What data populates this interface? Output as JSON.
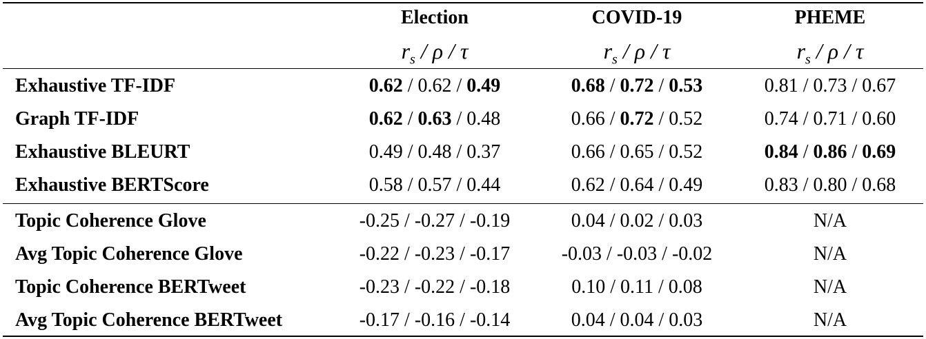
{
  "header": {
    "columns": [
      "Election",
      "COVID-19",
      "PHEME"
    ],
    "metric_label": "r_s / ρ / τ"
  },
  "rows": [
    {
      "label": "Exhaustive TF-IDF",
      "group": 1,
      "cells": [
        [
          {
            "v": "0.62",
            "b": true
          },
          {
            "v": "0.62",
            "b": false
          },
          {
            "v": "0.49",
            "b": true
          }
        ],
        [
          {
            "v": "0.68",
            "b": true
          },
          {
            "v": "0.72",
            "b": true
          },
          {
            "v": "0.53",
            "b": true
          }
        ],
        [
          {
            "v": "0.81",
            "b": false
          },
          {
            "v": "0.73",
            "b": false
          },
          {
            "v": "0.67",
            "b": false
          }
        ]
      ]
    },
    {
      "label": "Graph TF-IDF",
      "group": 1,
      "cells": [
        [
          {
            "v": "0.62",
            "b": true
          },
          {
            "v": "0.63",
            "b": true
          },
          {
            "v": "0.48",
            "b": false
          }
        ],
        [
          {
            "v": "0.66",
            "b": false
          },
          {
            "v": "0.72",
            "b": true
          },
          {
            "v": "0.52",
            "b": false
          }
        ],
        [
          {
            "v": "0.74",
            "b": false
          },
          {
            "v": "0.71",
            "b": false
          },
          {
            "v": "0.60",
            "b": false
          }
        ]
      ]
    },
    {
      "label": "Exhaustive BLEURT",
      "group": 1,
      "cells": [
        [
          {
            "v": "0.49",
            "b": false
          },
          {
            "v": "0.48",
            "b": false
          },
          {
            "v": "0.37",
            "b": false
          }
        ],
        [
          {
            "v": "0.66",
            "b": false
          },
          {
            "v": "0.65",
            "b": false
          },
          {
            "v": "0.52",
            "b": false
          }
        ],
        [
          {
            "v": "0.84",
            "b": true
          },
          {
            "v": "0.86",
            "b": true
          },
          {
            "v": "0.69",
            "b": true
          }
        ]
      ]
    },
    {
      "label": "Exhaustive BERTScore",
      "group": 1,
      "cells": [
        [
          {
            "v": "0.58",
            "b": false
          },
          {
            "v": "0.57",
            "b": false
          },
          {
            "v": "0.44",
            "b": false
          }
        ],
        [
          {
            "v": "0.62",
            "b": false
          },
          {
            "v": "0.64",
            "b": false
          },
          {
            "v": "0.49",
            "b": false
          }
        ],
        [
          {
            "v": "0.83",
            "b": false
          },
          {
            "v": "0.80",
            "b": false
          },
          {
            "v": "0.68",
            "b": false
          }
        ]
      ]
    },
    {
      "label": "Topic Coherence Glove",
      "group": 2,
      "cells": [
        [
          {
            "v": "-0.25",
            "b": false
          },
          {
            "v": "-0.27",
            "b": false
          },
          {
            "v": "-0.19",
            "b": false
          }
        ],
        [
          {
            "v": "0.04",
            "b": false
          },
          {
            "v": "0.02",
            "b": false
          },
          {
            "v": "0.03",
            "b": false
          }
        ],
        "N/A"
      ]
    },
    {
      "label": "Avg Topic Coherence Glove",
      "group": 2,
      "cells": [
        [
          {
            "v": "-0.22",
            "b": false
          },
          {
            "v": "-0.23",
            "b": false
          },
          {
            "v": "-0.17",
            "b": false
          }
        ],
        [
          {
            "v": "-0.03",
            "b": false
          },
          {
            "v": "-0.03",
            "b": false
          },
          {
            "v": "-0.02",
            "b": false
          }
        ],
        "N/A"
      ]
    },
    {
      "label": "Topic Coherence BERTweet",
      "group": 2,
      "cells": [
        [
          {
            "v": "-0.23",
            "b": false
          },
          {
            "v": "-0.22",
            "b": false
          },
          {
            "v": "-0.18",
            "b": false
          }
        ],
        [
          {
            "v": "0.10",
            "b": false
          },
          {
            "v": "0.11",
            "b": false
          },
          {
            "v": "0.08",
            "b": false
          }
        ],
        "N/A"
      ]
    },
    {
      "label": "Avg Topic Coherence BERTweet",
      "group": 2,
      "cells": [
        [
          {
            "v": "-0.17",
            "b": false
          },
          {
            "v": "-0.16",
            "b": false
          },
          {
            "v": "-0.14",
            "b": false
          }
        ],
        [
          {
            "v": "0.04",
            "b": false
          },
          {
            "v": "0.04",
            "b": false
          },
          {
            "v": "0.03",
            "b": false
          }
        ],
        "N/A"
      ]
    }
  ]
}
